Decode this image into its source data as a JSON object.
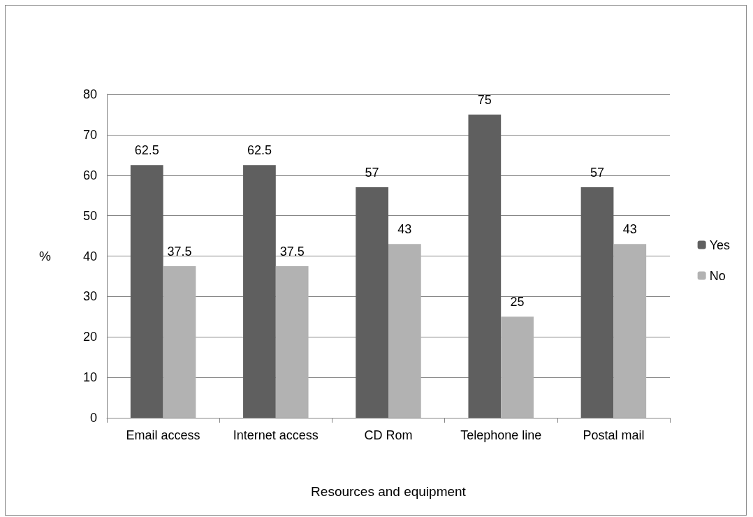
{
  "chart_data": {
    "type": "bar",
    "xlabel": "Resources and equipment",
    "ylabel": "%",
    "categories": [
      "Email access",
      "Internet access",
      "CD Rom",
      "Telephone line",
      "Postal mail"
    ],
    "series": [
      {
        "name": "Yes",
        "color": "#5f5f5f",
        "values": [
          62.5,
          62.5,
          57,
          75,
          57
        ]
      },
      {
        "name": "No",
        "color": "#b2b2b2",
        "values": [
          37.5,
          37.5,
          43,
          25,
          43
        ]
      }
    ],
    "ylim": [
      0,
      80
    ],
    "yticks": [
      0,
      10,
      20,
      30,
      40,
      50,
      60,
      70,
      80
    ],
    "grid": "y",
    "legend": "right",
    "data_labels": true
  }
}
